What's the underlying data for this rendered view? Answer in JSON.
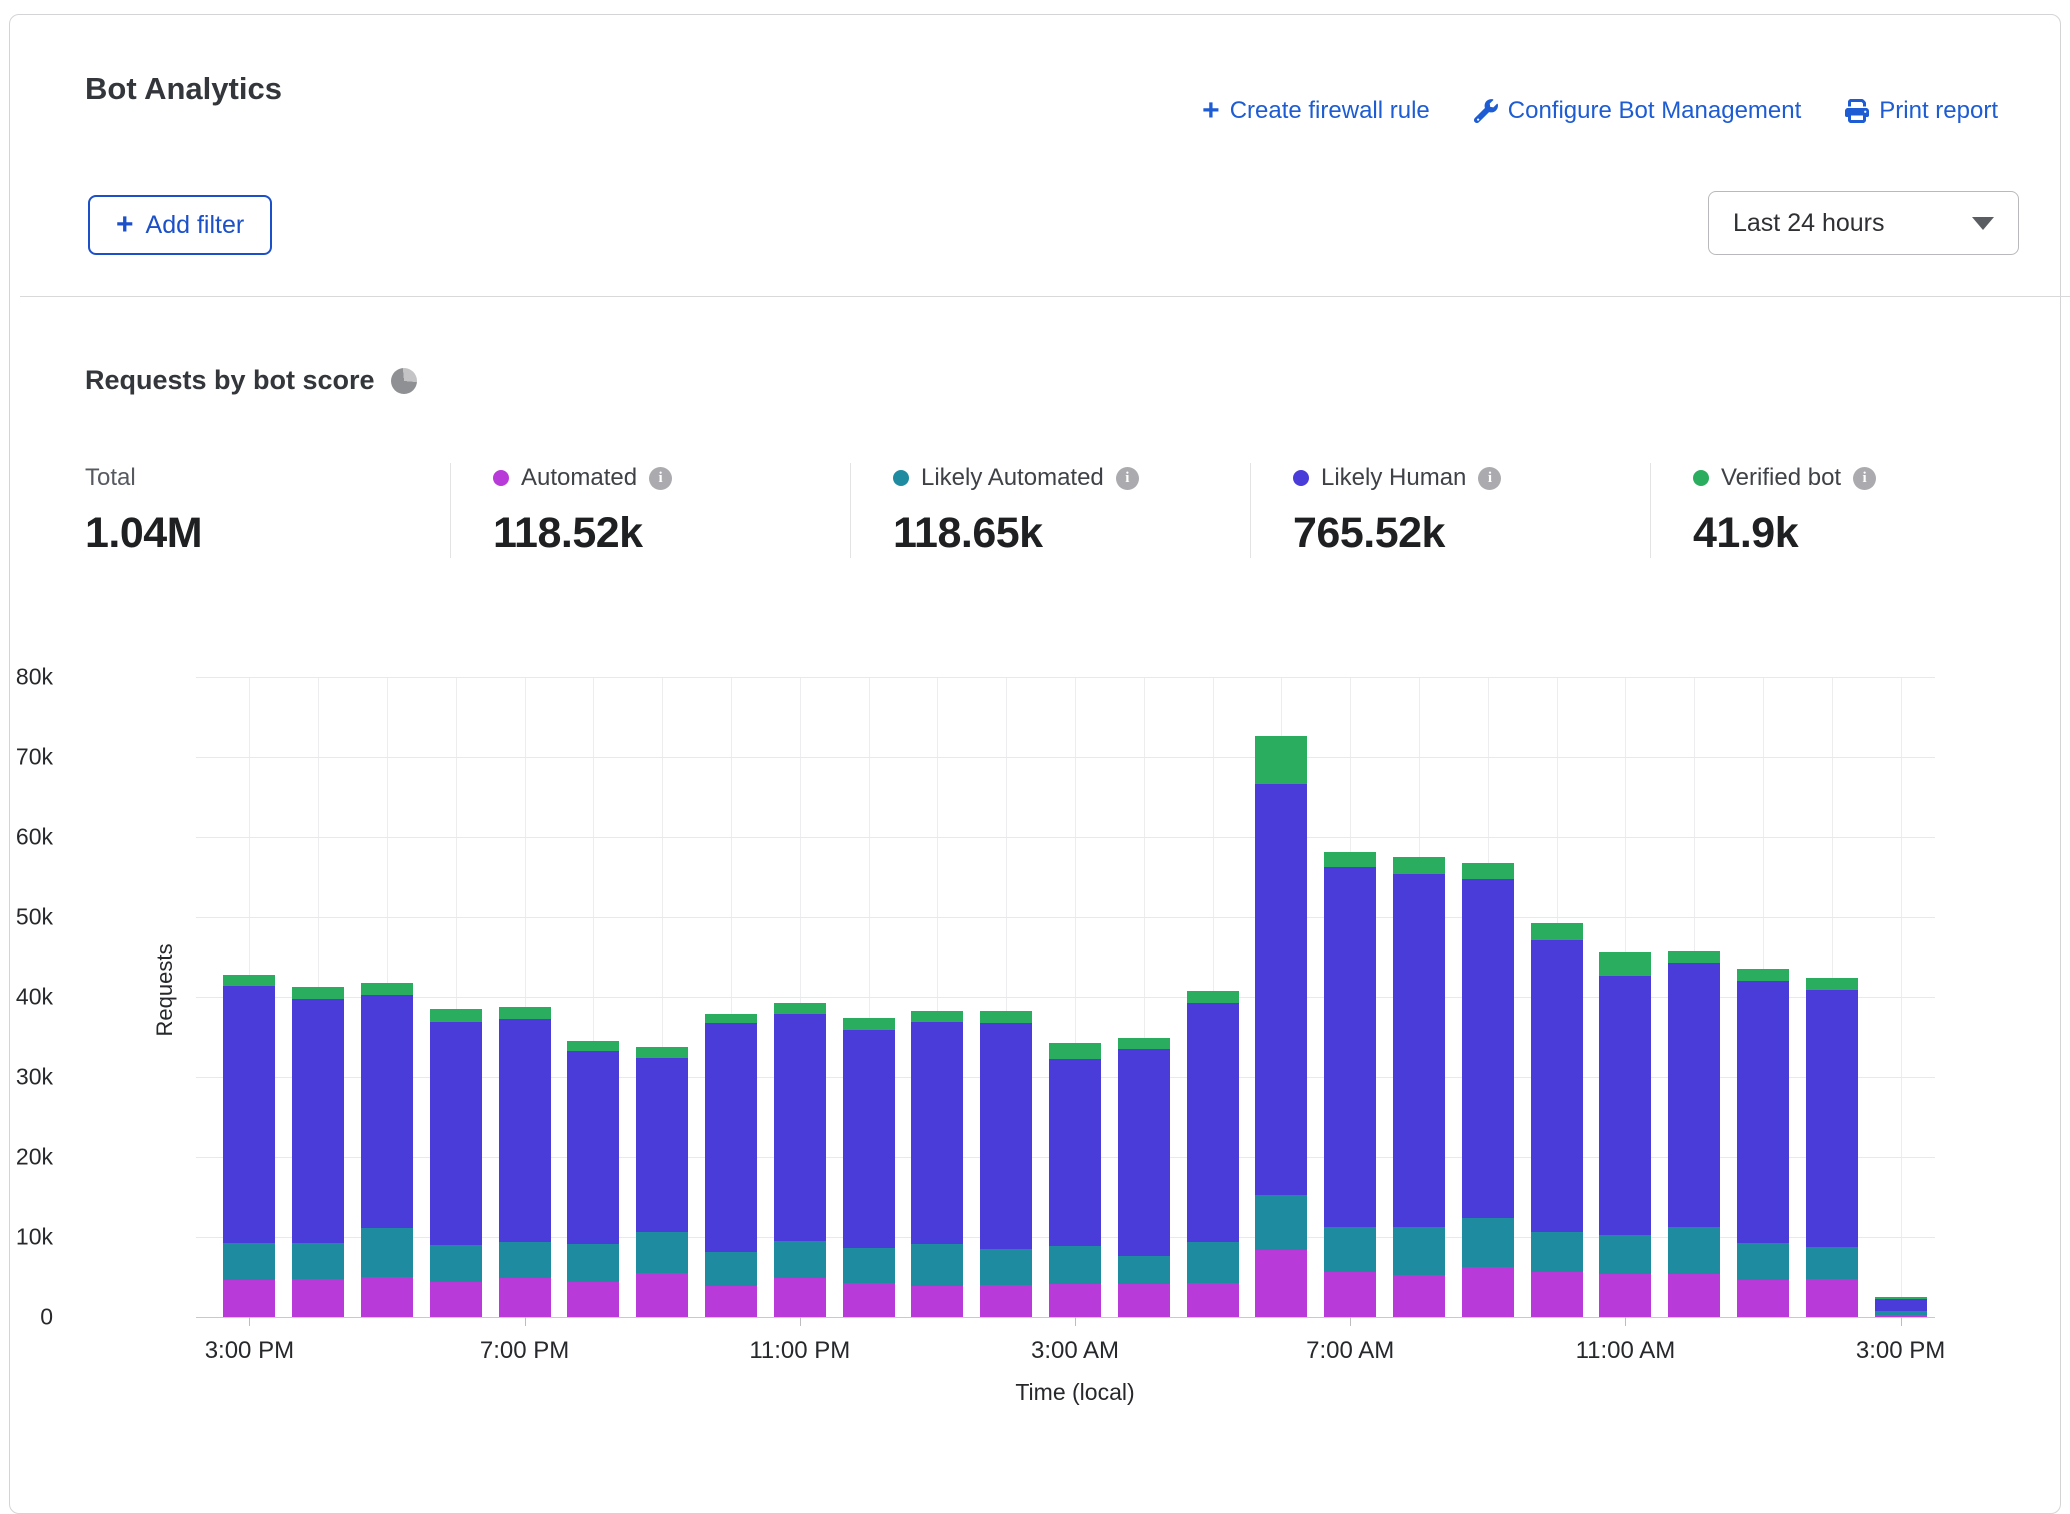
{
  "header": {
    "title": "Bot Analytics",
    "actions": [
      {
        "label": "Create firewall rule",
        "icon": "plus-icon"
      },
      {
        "label": "Configure Bot Management",
        "icon": "wrench-icon"
      },
      {
        "label": "Print report",
        "icon": "printer-icon"
      }
    ],
    "add_filter_label": "Add filter",
    "time_range_selected": "Last 24 hours"
  },
  "section": {
    "title": "Requests by bot score"
  },
  "stats": {
    "total": {
      "label": "Total",
      "value": "1.04M"
    },
    "series": [
      {
        "label": "Automated",
        "value": "118.52k",
        "color": "#b83ad8"
      },
      {
        "label": "Likely Automated",
        "value": "118.65k",
        "color": "#1f8ba0"
      },
      {
        "label": "Likely Human",
        "value": "765.52k",
        "color": "#4a3cd9"
      },
      {
        "label": "Verified bot",
        "value": "41.9k",
        "color": "#2bad5f"
      }
    ]
  },
  "chart_data": {
    "type": "bar",
    "subtype": "stacked",
    "title": "Requests by bot score",
    "xlabel": "Time (local)",
    "ylabel": "Requests",
    "unit": "thousands of requests",
    "ylim": [
      0,
      80000
    ],
    "grid": true,
    "y_ticks": [
      "0",
      "10k",
      "20k",
      "30k",
      "40k",
      "50k",
      "60k",
      "70k",
      "80k"
    ],
    "x_tick_labels": [
      {
        "index": 0,
        "label": "3:00 PM"
      },
      {
        "index": 4,
        "label": "7:00 PM"
      },
      {
        "index": 8,
        "label": "11:00 PM"
      },
      {
        "index": 12,
        "label": "3:00 AM"
      },
      {
        "index": 16,
        "label": "7:00 AM"
      },
      {
        "index": 20,
        "label": "11:00 AM"
      },
      {
        "index": 24,
        "label": "3:00 PM"
      }
    ],
    "categories": [
      "3:00 PM",
      "4:00 PM",
      "5:00 PM",
      "6:00 PM",
      "7:00 PM",
      "8:00 PM",
      "9:00 PM",
      "10:00 PM",
      "11:00 PM",
      "12:00 AM",
      "1:00 AM",
      "2:00 AM",
      "3:00 AM",
      "4:00 AM",
      "5:00 AM",
      "6:00 AM",
      "7:00 AM",
      "8:00 AM",
      "9:00 AM",
      "10:00 AM",
      "11:00 AM",
      "12:00 PM",
      "1:00 PM",
      "2:00 PM",
      "3:00 PM"
    ],
    "series": [
      {
        "name": "Automated",
        "color": "#b83ad8",
        "values": [
          4.6,
          4.7,
          5.0,
          4.4,
          4.9,
          4.4,
          5.5,
          3.9,
          4.9,
          4.3,
          3.9,
          4.0,
          4.1,
          4.1,
          4.3,
          8.4,
          5.6,
          5.3,
          6.3,
          5.6,
          5.4,
          5.4,
          4.6,
          4.8,
          0.3
        ]
      },
      {
        "name": "Likely Automated",
        "color": "#1f8ba0",
        "values": [
          4.7,
          4.6,
          6.1,
          4.6,
          4.5,
          4.7,
          5.1,
          4.2,
          4.6,
          4.3,
          5.2,
          4.5,
          4.8,
          3.5,
          5.1,
          6.9,
          5.7,
          5.9,
          6.1,
          5.0,
          4.9,
          5.9,
          4.7,
          3.9,
          0.4
        ]
      },
      {
        "name": "Likely Human",
        "color": "#4a3cd9",
        "values": [
          32.1,
          30.5,
          29.1,
          27.9,
          27.9,
          24.2,
          21.8,
          28.7,
          28.4,
          27.3,
          27.8,
          28.3,
          23.4,
          25.9,
          29.9,
          51.3,
          44.9,
          44.2,
          42.3,
          36.5,
          32.3,
          32.9,
          32.7,
          32.2,
          1.6
        ]
      },
      {
        "name": "Verified bot",
        "color": "#2bad5f",
        "values": [
          1.3,
          1.5,
          1.6,
          1.6,
          1.5,
          1.2,
          1.3,
          1.1,
          1.3,
          1.5,
          1.3,
          1.4,
          2.0,
          1.4,
          1.4,
          6.0,
          1.9,
          2.1,
          2.0,
          2.1,
          3.0,
          1.5,
          1.5,
          1.5,
          0.2
        ]
      }
    ],
    "legend_position": "above-chart"
  }
}
